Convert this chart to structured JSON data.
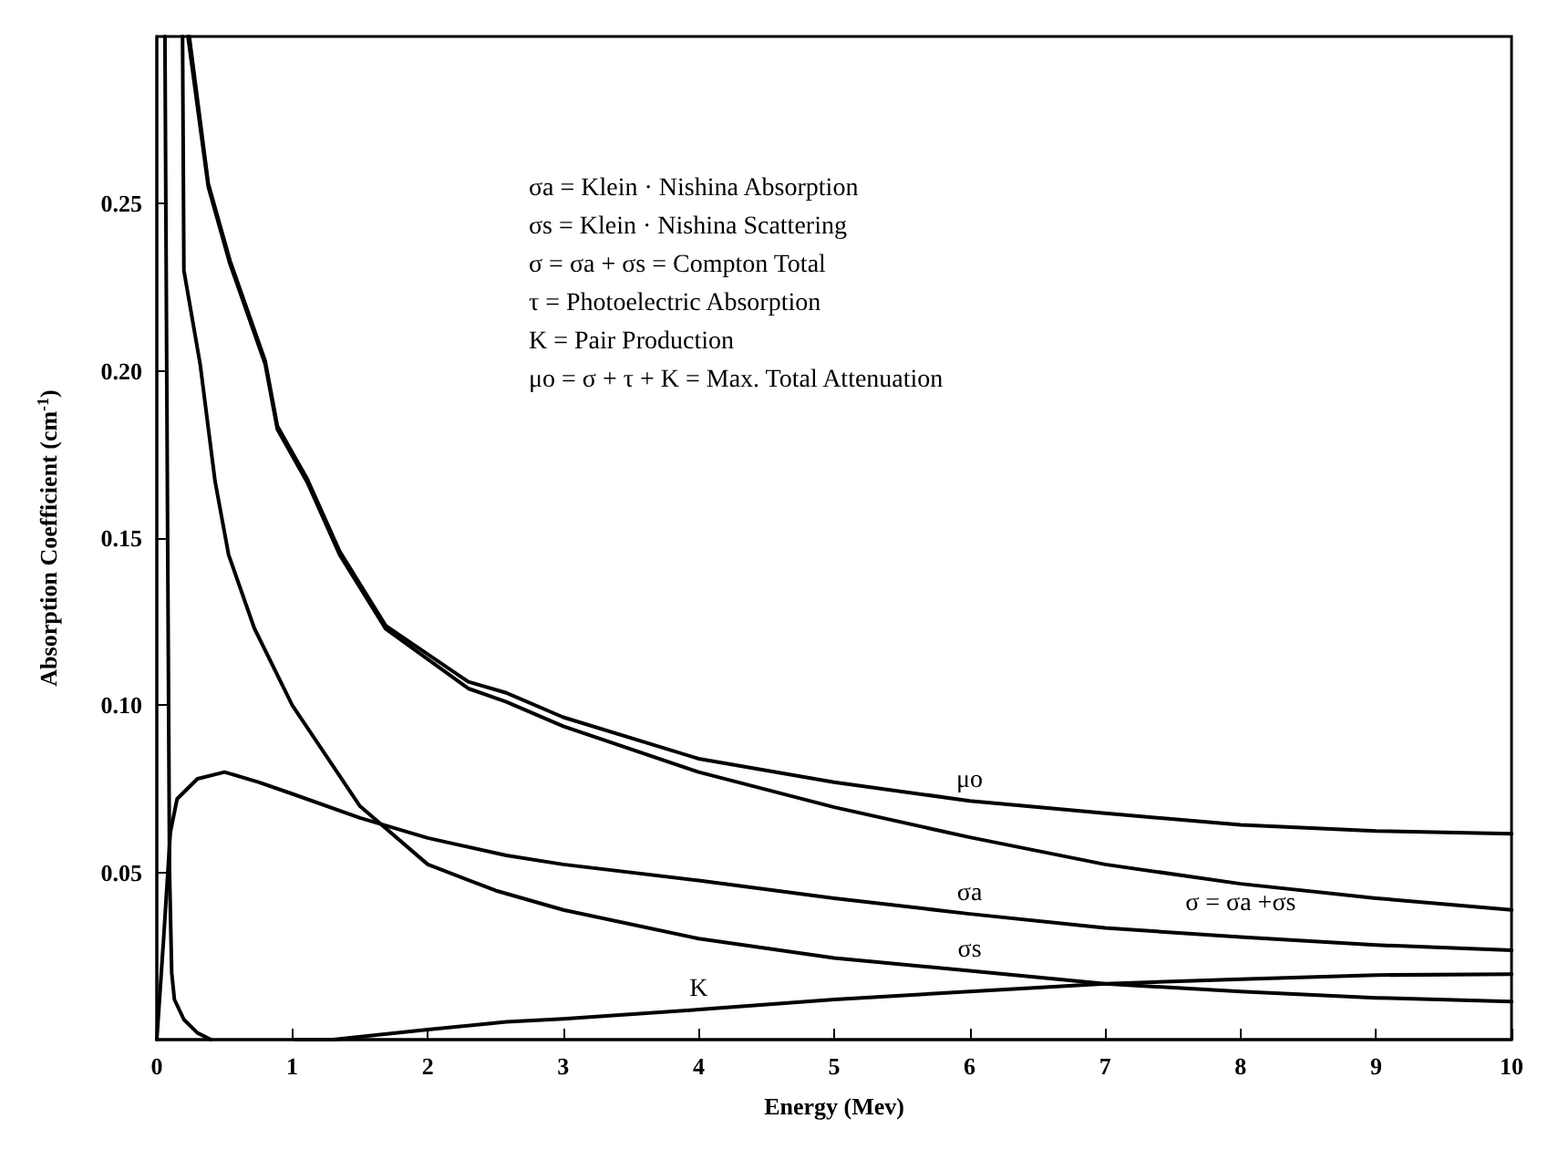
{
  "chart_data": {
    "type": "line",
    "xlabel": "Energy (Mev)",
    "ylabel": "Absorption Coefficient (cm$^{-1}$)",
    "xlim": [
      0,
      10
    ],
    "xticks": [
      0,
      1,
      2,
      3,
      4,
      5,
      6,
      7,
      8,
      9,
      10
    ],
    "ylim": [
      0,
      0.3
    ],
    "yticks": [
      0.05,
      {
        "value": 0.1,
        "label": "0.10"
      },
      0.15,
      {
        "value": 0.2,
        "label": "0.20"
      },
      0.25
    ],
    "line_style": "solid",
    "series": [
      {
        "name": "μo",
        "color": "#000000",
        "x": [
          0.24,
          0.38,
          0.54,
          0.8,
          0.89,
          1.11,
          1.35,
          1.69,
          2.3,
          2.58,
          3,
          4,
          5,
          6,
          7,
          8,
          9,
          10
        ],
        "values": [
          0.3,
          0.256,
          0.233,
          0.203,
          0.1835,
          0.1677,
          0.146,
          0.1238,
          0.107,
          0.1037,
          0.0964,
          0.084,
          0.077,
          0.0714,
          0.0677,
          0.0642,
          0.0624,
          0.0616
        ]
      },
      {
        "name": "σ = σa +σs",
        "color": "#000000",
        "x": [
          0.23,
          0.38,
          0.54,
          0.8,
          0.89,
          1.11,
          1.35,
          1.69,
          2.3,
          2.58,
          3,
          4,
          5,
          6,
          7,
          8,
          9,
          10
        ],
        "values": [
          0.3,
          0.255,
          0.232,
          0.202,
          0.1825,
          0.1667,
          0.145,
          0.1228,
          0.105,
          0.101,
          0.0937,
          0.08,
          0.0695,
          0.0605,
          0.0524,
          0.0466,
          0.0423,
          0.0388
        ]
      },
      {
        "name": "σa",
        "color": "#000000",
        "x": [
          0,
          0.05,
          0.1,
          0.15,
          0.3,
          0.5,
          0.75,
          1,
          1.5,
          2,
          2.58,
          3,
          4,
          5,
          6,
          7,
          8,
          9,
          10
        ],
        "values": [
          0,
          0.03,
          0.062,
          0.072,
          0.078,
          0.08,
          0.077,
          0.0735,
          0.0663,
          0.0603,
          0.0551,
          0.0524,
          0.0476,
          0.0423,
          0.0376,
          0.0334,
          0.0307,
          0.0283,
          0.0267
        ]
      },
      {
        "name": "σs",
        "color": "#000000",
        "x": [
          0.19,
          0.2,
          0.32,
          0.43,
          0.53,
          0.72,
          1,
          1.5,
          2,
          2.5,
          3,
          4,
          5,
          6,
          7,
          8,
          9,
          10
        ],
        "values": [
          0.3,
          0.23,
          0.202,
          0.167,
          0.145,
          0.123,
          0.1,
          0.0698,
          0.0524,
          0.0446,
          0.0388,
          0.0302,
          0.0244,
          0.0206,
          0.0167,
          0.0144,
          0.0125,
          0.0114
        ]
      },
      {
        "color": "#000000",
        "x": [
          0.06,
          0.08,
          0.094,
          0.11,
          0.13,
          0.2,
          0.3,
          0.4
        ],
        "values": [
          0.3,
          0.15,
          0.05,
          0.02,
          0.012,
          0.006,
          0.002,
          0
        ]
      },
      {
        "name": "K",
        "color": "#000000",
        "x": [
          1.02,
          1.3,
          2,
          2.58,
          3,
          4,
          5,
          6,
          7,
          8,
          9,
          10
        ],
        "values": [
          0,
          0,
          0.003,
          0.0053,
          0.0062,
          0.009,
          0.012,
          0.0144,
          0.0167,
          0.0181,
          0.0193,
          0.0196
        ]
      }
    ],
    "annotations": [
      "σa = Klein · Nishina Absorption",
      "σs = Klein · Nishina Scattering",
      "σ = σa + σs = Compton Total",
      "τ = Photoelectric Absorption",
      "K = Pair Production",
      "μo = σ + τ + K = Max. Total Attenuation"
    ]
  }
}
